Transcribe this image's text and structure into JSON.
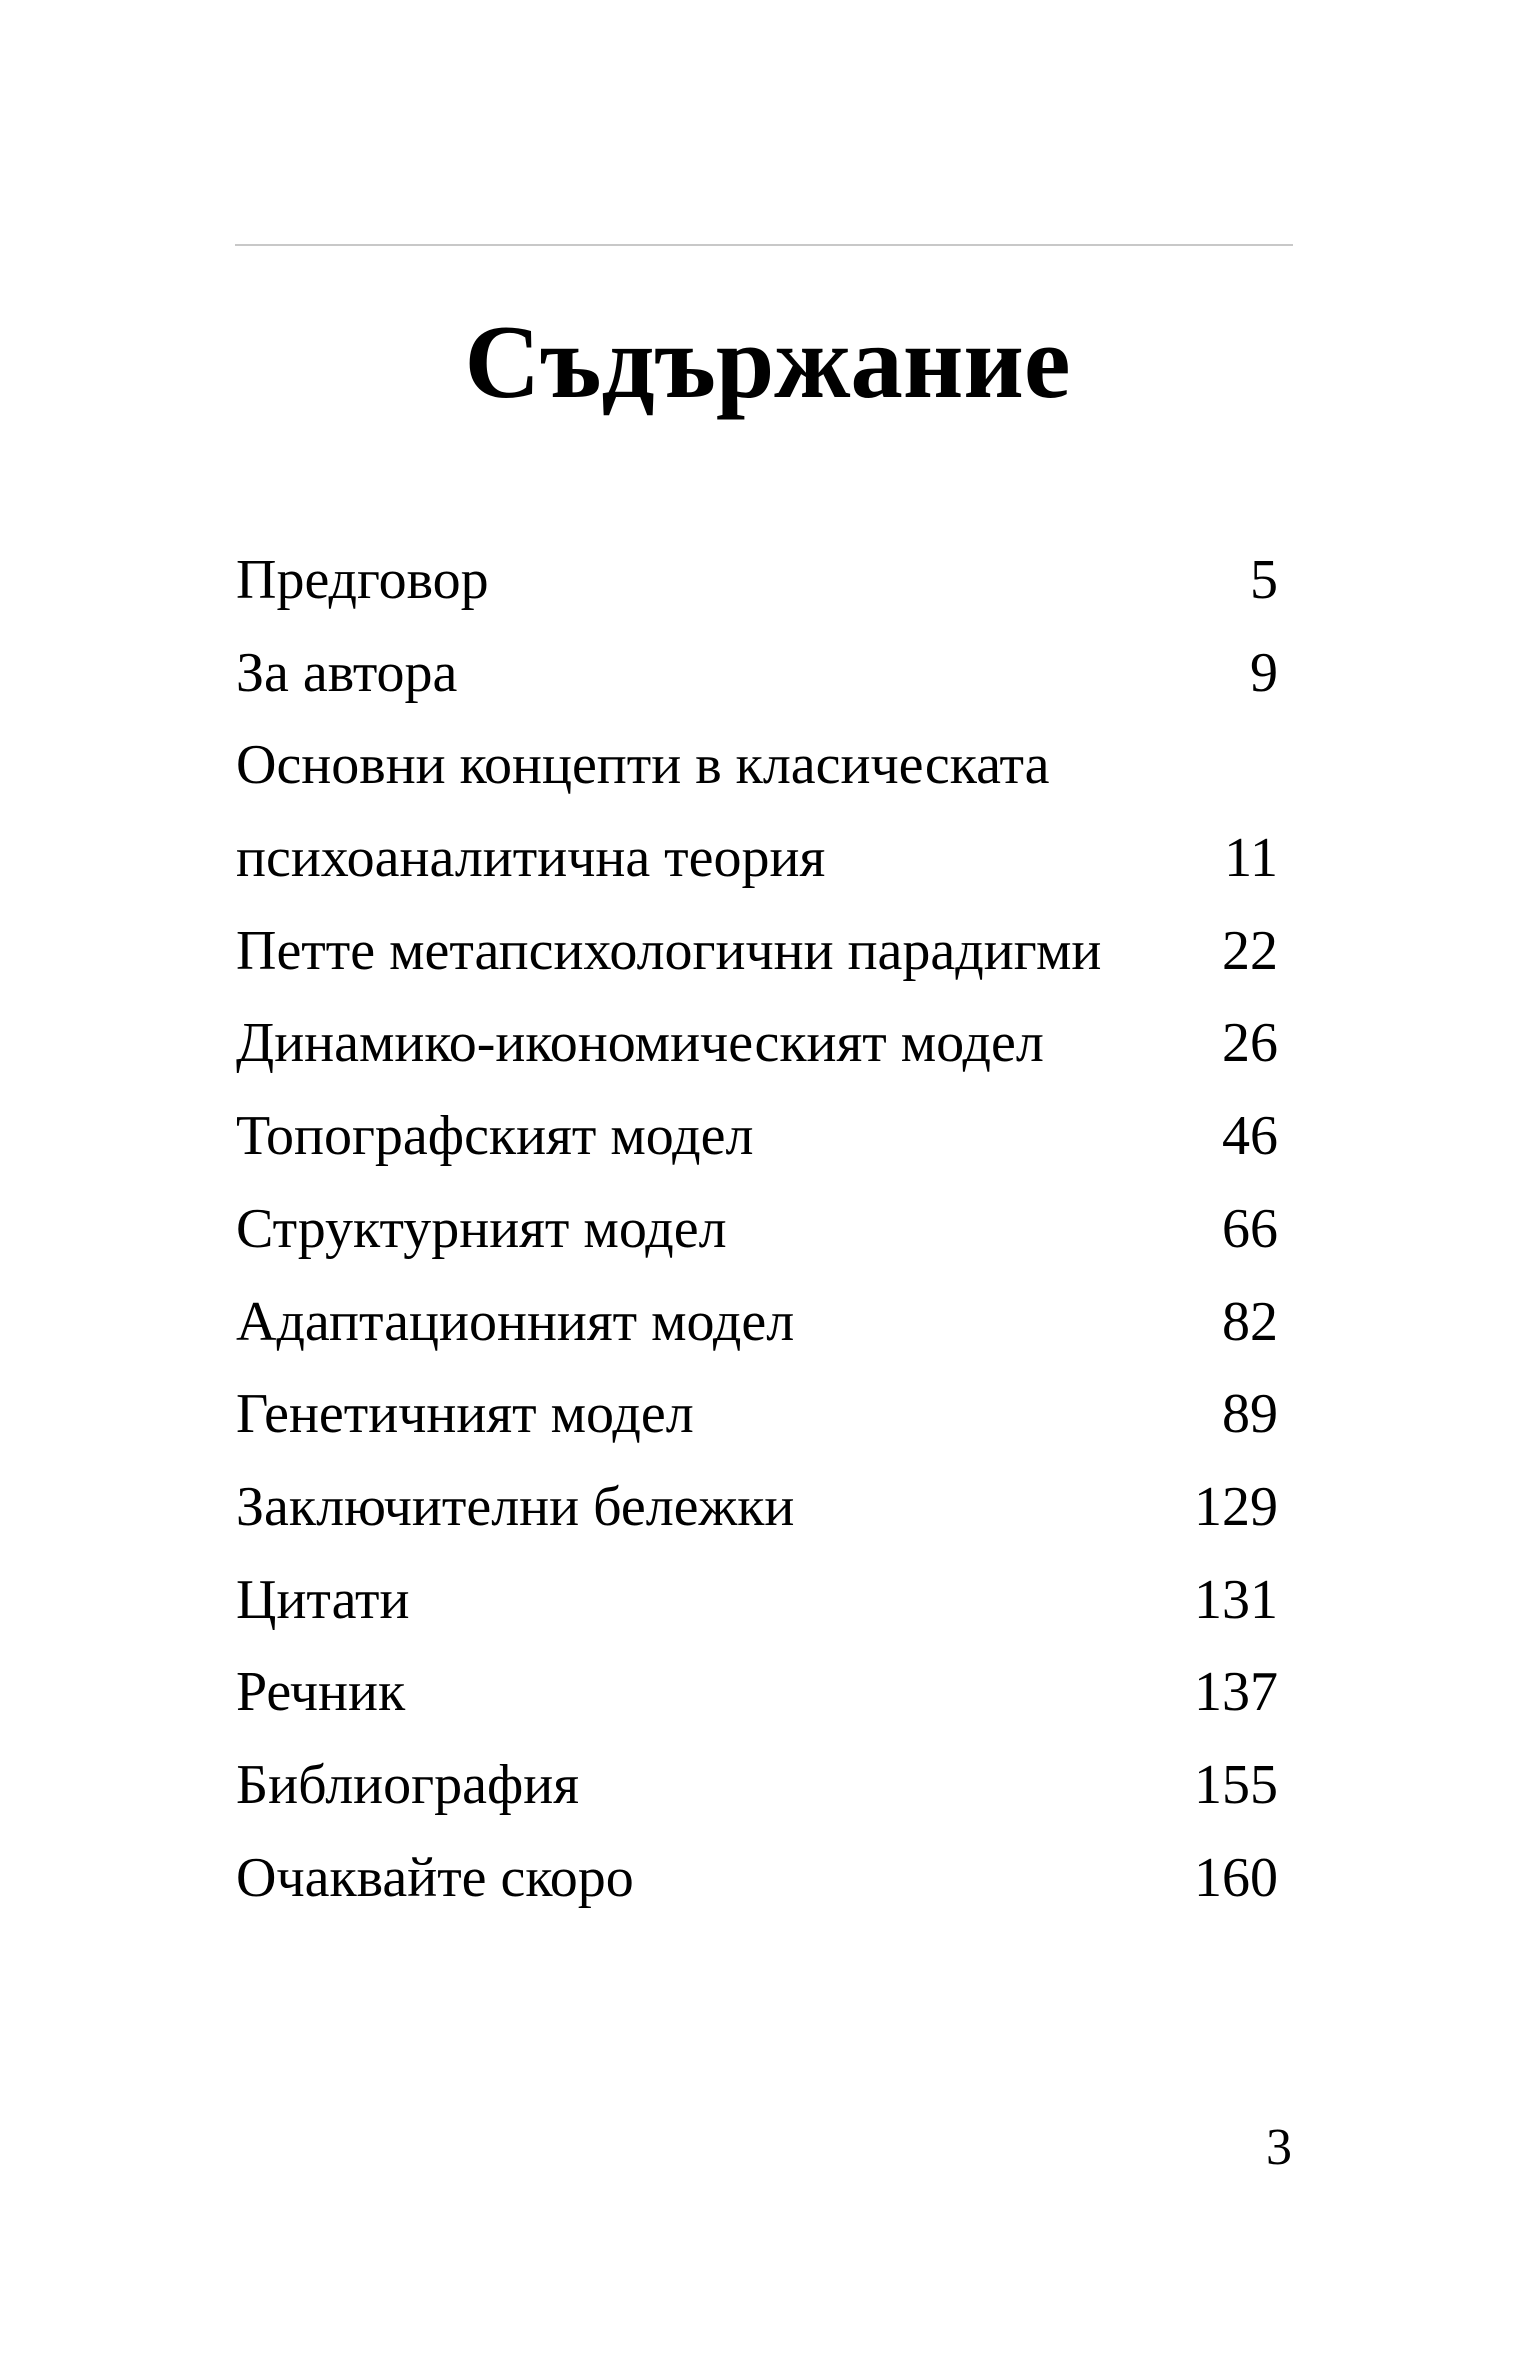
{
  "title": "Съдържание",
  "entries": [
    {
      "label": "Предговор",
      "page": "5"
    },
    {
      "label": "За автора",
      "page": "9"
    },
    {
      "label": "Основни концепти в класическата",
      "page": ""
    },
    {
      "label": "психоаналитична теория",
      "page": "11"
    },
    {
      "label": "Петте метапсихологични парадигми",
      "page": "22"
    },
    {
      "label": "Динамико-икономическият модел",
      "page": "26"
    },
    {
      "label": "Топографският модел",
      "page": "46"
    },
    {
      "label": "Структурният модел",
      "page": "66"
    },
    {
      "label": "Адаптационният модел",
      "page": "82"
    },
    {
      "label": "Генетичният модел",
      "page": "89"
    },
    {
      "label": "Заключителни бележки",
      "page": "129"
    },
    {
      "label": "Цитати",
      "page": "131"
    },
    {
      "label": "Речник",
      "page": "137"
    },
    {
      "label": "Библиография",
      "page": "155"
    },
    {
      "label": "Очаквайте скоро",
      "page": "160"
    }
  ],
  "page_number": "3"
}
